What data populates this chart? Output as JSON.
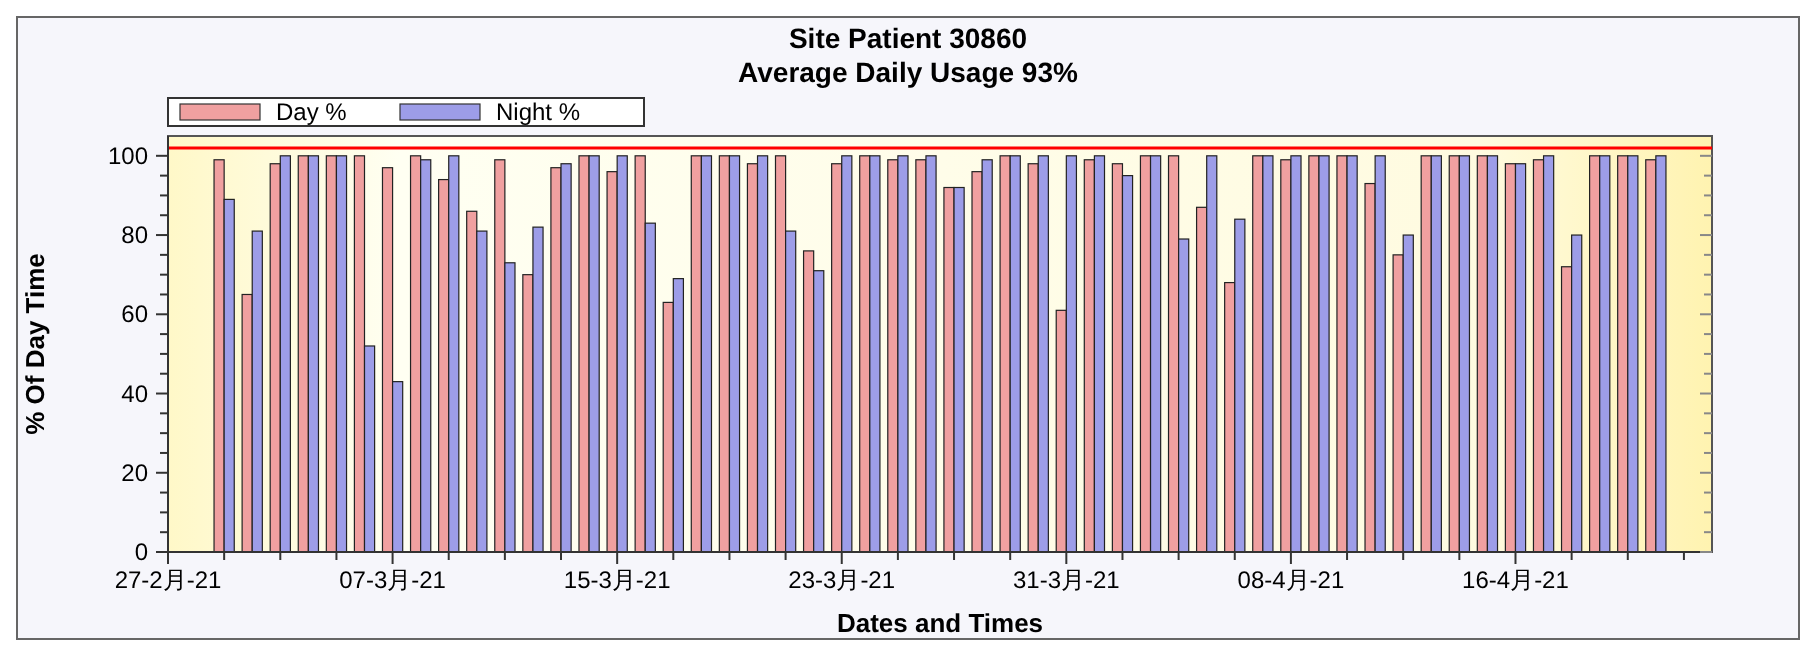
{
  "chart_data": {
    "type": "bar",
    "title": "Site Patient 30860",
    "subtitle": "Average Daily Usage 93%",
    "xlabel": "Dates and Times",
    "ylabel": "% Of Day Time",
    "x": [
      "--03-01",
      "--03-02",
      "--03-03",
      "--03-04",
      "--03-05",
      "--03-06",
      "--03-07",
      "--03-08",
      "--03-09",
      "--03-10",
      "--03-11",
      "--03-12",
      "--03-13",
      "--03-14",
      "--03-15",
      "--03-16",
      "--03-17",
      "--03-18",
      "--03-19",
      "--03-20",
      "--03-21",
      "--03-22",
      "--03-23",
      "--03-24",
      "--03-25",
      "--03-26",
      "--03-27",
      "--03-28",
      "--03-29",
      "--03-30",
      "--03-31",
      "--04-01",
      "--04-02",
      "--04-03",
      "--04-04",
      "--04-05",
      "--04-06",
      "--04-07",
      "--04-08",
      "--04-09",
      "--04-10",
      "--04-11",
      "--04-12",
      "--04-13",
      "--04-14",
      "--04-15",
      "--04-16",
      "--04-17",
      "--04-18",
      "--04-19",
      "--04-20",
      "--04-21"
    ],
    "series": [
      {
        "name": "Day %",
        "color": "#f0a0a0",
        "values": [
          99,
          65,
          98,
          100,
          100,
          100,
          97,
          100,
          94,
          86,
          99,
          70,
          97,
          100,
          96,
          100,
          63,
          100,
          100,
          98,
          100,
          76,
          98,
          100,
          99,
          99,
          92,
          96,
          100,
          98,
          61,
          99,
          98,
          100,
          100,
          87,
          68,
          100,
          99,
          100,
          100,
          93,
          75,
          100,
          100,
          100,
          98,
          99,
          72,
          100,
          100,
          99
        ]
      },
      {
        "name": "Night %",
        "color": "#9d9de8",
        "values": [
          89,
          81,
          100,
          100,
          100,
          52,
          43,
          99,
          100,
          81,
          73,
          82,
          98,
          100,
          100,
          83,
          69,
          100,
          100,
          100,
          81,
          71,
          100,
          100,
          100,
          100,
          92,
          99,
          100,
          100,
          100,
          100,
          95,
          100,
          79,
          100,
          84,
          100,
          100,
          100,
          100,
          100,
          80,
          100,
          100,
          100,
          98,
          100,
          80,
          100,
          100,
          100
        ]
      }
    ],
    "xlim": [
      "--02-27",
      "--04-23"
    ],
    "xticks": [
      {
        "value": "--02-27",
        "label": "27-2月-21"
      },
      {
        "value": "--03-01",
        "label": null
      },
      {
        "value": "--03-03",
        "label": null
      },
      {
        "value": "--03-05",
        "label": null
      },
      {
        "value": "--03-07",
        "label": "07-3月-21"
      },
      {
        "value": "--03-09",
        "label": null
      },
      {
        "value": "--03-11",
        "label": null
      },
      {
        "value": "--03-13",
        "label": null
      },
      {
        "value": "--03-15",
        "label": "15-3月-21"
      },
      {
        "value": "--03-17",
        "label": null
      },
      {
        "value": "--03-19",
        "label": null
      },
      {
        "value": "--03-21",
        "label": null
      },
      {
        "value": "--03-23",
        "label": "23-3月-21"
      },
      {
        "value": "--03-25",
        "label": null
      },
      {
        "value": "--03-27",
        "label": null
      },
      {
        "value": "--03-29",
        "label": null
      },
      {
        "value": "--03-31",
        "label": "31-3月-21"
      },
      {
        "value": "--04-02",
        "label": null
      },
      {
        "value": "--04-04",
        "label": null
      },
      {
        "value": "--04-06",
        "label": null
      },
      {
        "value": "--04-08",
        "label": "08-4月-21"
      },
      {
        "value": "--04-10",
        "label": null
      },
      {
        "value": "--04-12",
        "label": null
      },
      {
        "value": "--04-14",
        "label": null
      },
      {
        "value": "--04-16",
        "label": "16-4月-21"
      },
      {
        "value": "--04-18",
        "label": null
      },
      {
        "value": "--04-20",
        "label": null
      },
      {
        "value": "--04-22",
        "label": null
      }
    ],
    "ylim": [
      0,
      105
    ],
    "yticks": [
      0,
      {
        "value": 5,
        "label": null
      },
      {
        "value": 10,
        "label": null
      },
      {
        "value": 15,
        "label": null
      },
      20,
      {
        "value": 25,
        "label": null
      },
      {
        "value": 30,
        "label": null
      },
      {
        "value": 35,
        "label": null
      },
      40,
      {
        "value": 45,
        "label": null
      },
      {
        "value": 50,
        "label": null
      },
      {
        "value": 55,
        "label": null
      },
      60,
      {
        "value": 65,
        "label": null
      },
      {
        "value": 70,
        "label": null
      },
      {
        "value": 75,
        "label": null
      },
      80,
      {
        "value": 85,
        "label": null
      },
      {
        "value": 90,
        "label": null
      },
      {
        "value": 95,
        "label": null
      },
      100
    ],
    "ref_lines": [
      {
        "axis": "y",
        "value": 102,
        "color": "#ff0000"
      }
    ],
    "legend": "top left",
    "grid": false
  }
}
